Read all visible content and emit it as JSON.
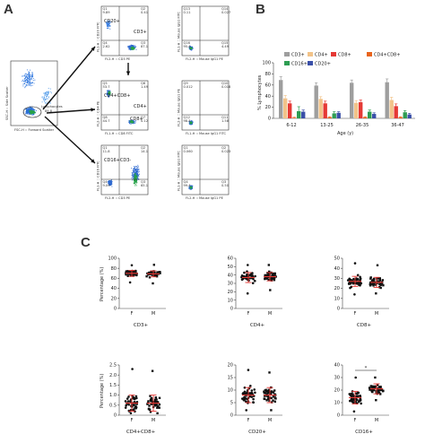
{
  "panels": {
    "A": "A",
    "B": "B",
    "C": "C"
  },
  "flow": {
    "main": {
      "xlabel": "FSC-H :: Forward Scatter",
      "ylabel": "SSC-H :: Side Scatter",
      "gate_label": "Lymphocytes",
      "gate_value": "89.8"
    },
    "plots": [
      {
        "id": "cd3",
        "label": "CD20+",
        "label2": "CD3+",
        "xlabel": "FL2-H :: CD3 PE",
        "ylabel": "FL1-H :: CD20 FITC",
        "q": [
          "Q1",
          "Q2",
          "Q3",
          "Q4"
        ],
        "v": [
          "9.89",
          "0.41",
          "87.1",
          "2.62"
        ]
      },
      {
        "id": "cd3iso",
        "label": "",
        "label2": "",
        "xlabel": "FL2-H :: Mouse IgG1 PE",
        "ylabel": "FL1-H :: Mouse IgG1 FITC",
        "q": [
          "Q13",
          "Q14",
          "Q15",
          "Q16"
        ],
        "v": [
          "0.11",
          "0.027",
          "4.49",
          "95.4"
        ]
      },
      {
        "id": "cd4",
        "label": "CD4+CD8+",
        "label2": "CD4+",
        "label3": "CD8+",
        "xlabel": "FL1-H :: CD8 FITC",
        "ylabel": "FL2-H :: CD4 PE",
        "q": [
          "Q5",
          "Q6",
          "Q7",
          "Q8"
        ],
        "v": [
          "53.7",
          "1.49",
          "0.12",
          "44.7"
        ]
      },
      {
        "id": "cd4iso",
        "label": "",
        "label2": "",
        "xlabel": "FL1-H :: Mouse IgG1 FITC",
        "ylabel": "FL2-H :: Mouse IgG1 PE",
        "q": [
          "Q9",
          "Q10",
          "Q11",
          "Q12"
        ],
        "v": [
          "0.012",
          "0.018",
          "1.58",
          "98.4"
        ]
      },
      {
        "id": "cd16",
        "label": "CD16+CD3-",
        "label2": "",
        "xlabel": "FL2-H :: CD3 PE",
        "ylabel": "FL1-H :: CD16 FITC",
        "q": [
          "Q1",
          "Q2",
          "Q3",
          "Q4"
        ],
        "v": [
          "11.8",
          "14.1",
          "65.1",
          "9.09"
        ]
      },
      {
        "id": "cd16iso",
        "label": "",
        "label2": "",
        "xlabel": "FL2-H :: Mouse IgG1 PE",
        "ylabel": "FL1-H :: Mouse IgG1 FITC",
        "q": [
          "Q1",
          "Q2",
          "Q3",
          "Q4"
        ],
        "v": [
          "0.060",
          "0.023",
          "0.50",
          "99.4"
        ]
      }
    ]
  },
  "chart_data": [
    {
      "type": "bar",
      "panel": "B",
      "categories": [
        "6-12",
        "13-25",
        "26-35",
        "36-47"
      ],
      "xlabel": "Age (y)",
      "ylabel": "% Lymphocytes",
      "ylim": [
        0,
        100
      ],
      "yticks": [
        "0",
        "20",
        "40",
        "60",
        "80",
        "100"
      ],
      "legend": "top",
      "series": [
        {
          "name": "CD3+",
          "color": "#9e9e9e",
          "values": [
            69,
            59,
            64,
            65
          ],
          "err": [
            6,
            5,
            5,
            6
          ]
        },
        {
          "name": "CD4+",
          "color": "#f2c389",
          "values": [
            36,
            35,
            28,
            33
          ],
          "err": [
            5,
            4,
            4,
            5
          ]
        },
        {
          "name": "CD8+",
          "color": "#e53935",
          "values": [
            27,
            27,
            29,
            22
          ],
          "err": [
            4,
            4,
            4,
            4
          ]
        },
        {
          "name": "CD4+CD8+",
          "color": "#e8641c",
          "values": [
            1,
            2,
            2,
            2
          ],
          "err": [
            1,
            1,
            1,
            1
          ]
        },
        {
          "name": "CD16+",
          "color": "#2e9d52",
          "values": [
            13,
            9,
            12,
            11
          ],
          "err": [
            8,
            3,
            3,
            3
          ]
        },
        {
          "name": "CD20+",
          "color": "#3a4fa8",
          "values": [
            12,
            10,
            8,
            7
          ],
          "err": [
            3,
            2,
            2,
            2
          ]
        }
      ]
    },
    {
      "type": "scatter",
      "panel": "C",
      "plots": [
        {
          "xlabel": "CD3+",
          "ylabel": "Percentage (%)",
          "categories": [
            "F",
            "M"
          ],
          "yticks": [
            "0",
            "20",
            "40",
            "60",
            "80",
            "100"
          ],
          "ylim": [
            0,
            100
          ],
          "F": {
            "mean": 70,
            "sd": 6,
            "min": 52,
            "max": 86
          },
          "M": {
            "mean": 69,
            "sd": 6,
            "min": 50,
            "max": 87
          },
          "sig": ""
        },
        {
          "xlabel": "CD4+",
          "ylabel": "",
          "categories": [
            "F",
            "M"
          ],
          "yticks": [
            "0",
            "10",
            "20",
            "30",
            "40",
            "50",
            "60"
          ],
          "ylim": [
            0,
            60
          ],
          "F": {
            "mean": 37,
            "sd": 6,
            "min": 18,
            "max": 52
          },
          "M": {
            "mean": 38,
            "sd": 5,
            "min": 22,
            "max": 52
          },
          "sig": ""
        },
        {
          "xlabel": "CD8+",
          "ylabel": "",
          "categories": [
            "F",
            "M"
          ],
          "yticks": [
            "0",
            "10",
            "20",
            "30",
            "40",
            "50"
          ],
          "ylim": [
            0,
            50
          ],
          "F": {
            "mean": 27,
            "sd": 5,
            "min": 14,
            "max": 45
          },
          "M": {
            "mean": 26,
            "sd": 5,
            "min": 15,
            "max": 43
          },
          "sig": ""
        },
        {
          "xlabel": "CD4+CD8+",
          "ylabel": "Percentage (%)",
          "categories": [
            "F",
            "M"
          ],
          "yticks": [
            "0",
            "0.5",
            "1.0",
            "1.5",
            "2.0",
            "2.5"
          ],
          "ylim": [
            0,
            2.5
          ],
          "F": {
            "mean": 0.6,
            "sd": 0.4,
            "min": 0.1,
            "max": 2.3
          },
          "M": {
            "mean": 0.6,
            "sd": 0.4,
            "min": 0.1,
            "max": 2.2
          },
          "sig": ""
        },
        {
          "xlabel": "CD20+",
          "ylabel": "",
          "categories": [
            "F",
            "M"
          ],
          "yticks": [
            "0",
            "5",
            "10",
            "15",
            "20"
          ],
          "ylim": [
            0,
            20
          ],
          "F": {
            "mean": 8,
            "sd": 3,
            "min": 2,
            "max": 18
          },
          "M": {
            "mean": 8,
            "sd": 3,
            "min": 2,
            "max": 17
          },
          "sig": ""
        },
        {
          "xlabel": "CD16+",
          "ylabel": "",
          "categories": [
            "F",
            "M"
          ],
          "yticks": [
            "0",
            "10",
            "20",
            "30",
            "40"
          ],
          "ylim": [
            0,
            40
          ],
          "F": {
            "mean": 14,
            "sd": 5,
            "min": 3,
            "max": 30
          },
          "M": {
            "mean": 21,
            "sd": 4,
            "min": 12,
            "max": 30
          },
          "sig": "*"
        }
      ]
    }
  ]
}
